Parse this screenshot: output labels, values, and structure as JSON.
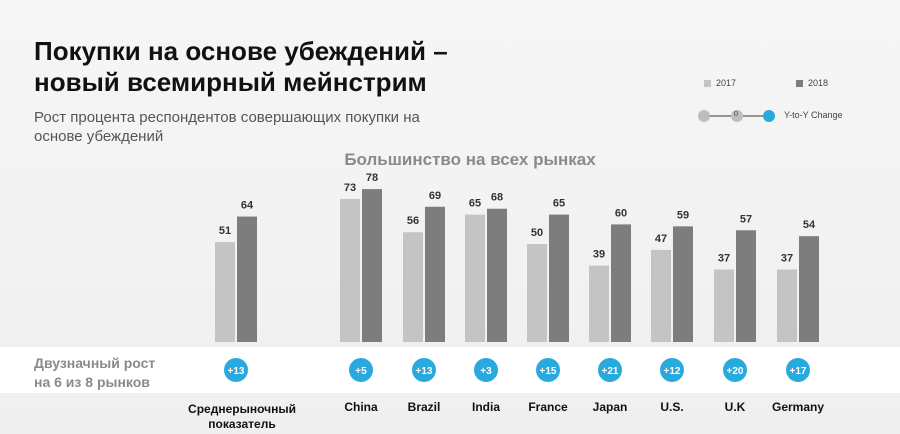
{
  "title_line1": "Покупки на основе убеждений –",
  "title_line2": "новый всемирный мейнстрим",
  "subtitle_line1": "Рост процента респондентов совершающих покупки на",
  "subtitle_line2": "основе убеждений",
  "band_line1": "Двузначный рост",
  "band_line2": "на 6 из 8 рынков",
  "legend": {
    "item1": "2017",
    "item2": "2018",
    "change_label": "Y-to-Y Change",
    "change_sample": "0"
  },
  "colors": {
    "bar_2017": "#c4c4c4",
    "bar_2018": "#7d7d7d",
    "change_circle": "#29aadf"
  },
  "chart_data": {
    "type": "bar",
    "title": "Большинство на всех рынках",
    "categories": [
      "Среднерыночный показатель",
      "China",
      "Brazil",
      "India",
      "France",
      "Japan",
      "U.S.",
      "U.K",
      "Germany"
    ],
    "series": [
      {
        "name": "2017",
        "values": [
          51,
          73,
          56,
          65,
          50,
          39,
          47,
          37,
          37
        ]
      },
      {
        "name": "2018",
        "values": [
          64,
          78,
          69,
          68,
          65,
          60,
          59,
          57,
          54
        ]
      }
    ],
    "changes": [
      "+13",
      "+5",
      "+13",
      "+3",
      "+15",
      "+21",
      "+12",
      "+20",
      "+17"
    ],
    "ylim": [
      0,
      100
    ],
    "legend_position": "top-right",
    "grid": false
  }
}
